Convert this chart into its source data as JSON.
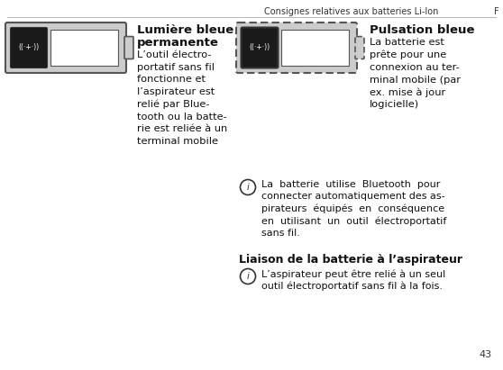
{
  "header_text": "Consignes relatives aux batteries Li-Ion",
  "header_right": "F",
  "page_number": "43",
  "bg_color": "#ffffff",
  "title1_line1": "Lumière bleue",
  "title1_line2": "permanente",
  "desc1": "L’outil électro-\nportatif sans fil\nfonctionne et\nl’aspirateur est\nrelié par Blue-\ntooth ou la batte-\nrie est reliée à un\nterminal mobile",
  "title2": "Pulsation bleue",
  "desc2": "La batterie est\nprête pour une\nconnexion au ter-\nminal mobile (par\nex. mise à jour\nlogicielle)",
  "info_text": "La  batterie  utilise  Bluetooth  pour\nconnecter automatiquement des as-\npirateurs  équipés  en  conséquence\nen  utilisant  un  outil  électroportatif\nsans fil.",
  "liaison_title": "Liaison de la batterie à l’aspirateur",
  "liaison_text": "L’aspirateur peut être relié à un seul\noutil électroportatif sans fil à la fois.",
  "batt_symbol": "((·+·))"
}
